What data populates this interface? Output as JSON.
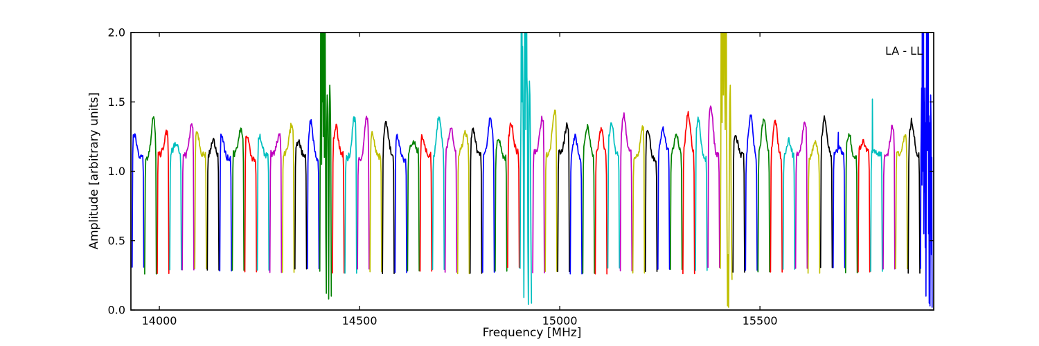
{
  "figure": {
    "background": "#ffffff",
    "annotation": "LA - LL"
  },
  "chart_data": {
    "type": "line",
    "title": "",
    "xlabel": "Frequency [MHz]",
    "ylabel": "Amplitude [arbitrary units]",
    "annotation": "LA - LL",
    "xlim": [
      13929,
      15934
    ],
    "ylim": [
      0.0,
      2.0
    ],
    "xticks": [
      14000,
      14500,
      15000,
      15500
    ],
    "xtick_labels": [
      "14000",
      "14500",
      "15000",
      "15500"
    ],
    "yticks": [
      0.0,
      0.5,
      1.0,
      1.5,
      2.0
    ],
    "ytick_labels": [
      "0.0",
      "0.5",
      "1.0",
      "1.5",
      "2.0"
    ],
    "grid": false,
    "legend_position": "none",
    "axis_color": "#000000",
    "color_cycle": [
      "#0000ff",
      "#008000",
      "#ff0000",
      "#00bfbf",
      "#bf00bf",
      "#bfbf00",
      "#000000"
    ],
    "subbands": {
      "count": 64,
      "first_freq_mhz": 13931.5,
      "width_mhz": 31.26,
      "base_amp": 1.11,
      "edge_amp": 0.26,
      "bands": [
        {
          "p": 1.27,
          "q": 0.15
        },
        {
          "p": 1.38,
          "q": 0.75
        },
        {
          "p": 1.28,
          "q": 0.8
        },
        {
          "p": 1.19,
          "q": 0.5
        },
        {
          "p": 1.33,
          "q": 0.8
        },
        {
          "p": 1.27,
          "q": 0.2
        },
        {
          "p": 1.22,
          "q": 0.5
        },
        {
          "p": 1.26,
          "q": 0.15
        },
        {
          "p": 1.3,
          "q": 0.75
        },
        {
          "p": 1.26,
          "q": 0.2
        },
        {
          "p": 1.25,
          "q": 0.2
        },
        {
          "p": 1.26,
          "q": 0.8
        },
        {
          "p": 1.34,
          "q": 0.8
        },
        {
          "p": 1.21,
          "q": 0.3
        },
        {
          "p": 1.36,
          "q": 0.3
        },
        {
          "rfi": [
            [
              0,
              0.28
            ],
            [
              0.03,
              1.05
            ],
            [
              0.06,
              1.3
            ],
            [
              0.09,
              2.6
            ],
            [
              0.13,
              2.6
            ],
            [
              0.15,
              1.05
            ],
            [
              0.17,
              2.6
            ],
            [
              0.2,
              2.6
            ],
            [
              0.23,
              1.5
            ],
            [
              0.26,
              1.68
            ],
            [
              0.29,
              1.25
            ],
            [
              0.32,
              2.6
            ],
            [
              0.36,
              2.6
            ],
            [
              0.38,
              1.1
            ],
            [
              0.4,
              2.6
            ],
            [
              0.43,
              2.6
            ],
            [
              0.46,
              1.6
            ],
            [
              0.5,
              0.55
            ],
            [
              0.54,
              0.12
            ],
            [
              0.58,
              1.3
            ],
            [
              0.62,
              1.55
            ],
            [
              0.66,
              1.45
            ],
            [
              0.7,
              1.1
            ],
            [
              0.74,
              0.08
            ],
            [
              0.79,
              1.4
            ],
            [
              0.83,
              1.62
            ],
            [
              0.87,
              1.5
            ],
            [
              0.91,
              1.25
            ],
            [
              0.96,
              0.1
            ]
          ]
        },
        {
          "p": 1.32,
          "q": 0.3
        },
        {
          "p": 1.38,
          "q": 0.8
        },
        {
          "p": 1.38,
          "q": 0.8
        },
        {
          "p": 1.28,
          "q": 0.2
        },
        {
          "p": 1.35,
          "q": 0.3
        },
        {
          "p": 1.25,
          "q": 0.2
        },
        {
          "p": 1.22,
          "q": 0.5
        },
        {
          "p": 1.25,
          "q": 0.2
        },
        {
          "p": 1.4,
          "q": 0.55
        },
        {
          "p": 1.32,
          "q": 0.5
        },
        {
          "p": 1.28,
          "q": 0.65
        },
        {
          "p": 1.3,
          "q": 0.25
        },
        {
          "p": 1.38,
          "q": 0.65
        },
        {
          "p": 1.22,
          "q": 0.3
        },
        {
          "p": 1.34,
          "q": 0.3
        },
        {
          "rfi": [
            [
              0,
              0.3
            ],
            [
              0.04,
              1.0
            ],
            [
              0.08,
              1.45
            ],
            [
              0.11,
              2.6
            ],
            [
              0.15,
              2.6
            ],
            [
              0.18,
              1.5
            ],
            [
              0.21,
              1.9
            ],
            [
              0.24,
              1.55
            ],
            [
              0.28,
              1.0
            ],
            [
              0.32,
              0.09
            ],
            [
              0.37,
              1.55
            ],
            [
              0.4,
              2.6
            ],
            [
              0.45,
              2.6
            ],
            [
              0.48,
              1.3
            ],
            [
              0.5,
              2.6
            ],
            [
              0.53,
              2.6
            ],
            [
              0.57,
              1.68
            ],
            [
              0.61,
              1.55
            ],
            [
              0.65,
              0.5
            ],
            [
              0.69,
              0.04
            ],
            [
              0.74,
              1.45
            ],
            [
              0.78,
              1.65
            ],
            [
              0.82,
              1.55
            ],
            [
              0.86,
              1.2
            ],
            [
              0.9,
              0.6
            ],
            [
              0.95,
              0.05
            ]
          ]
        },
        {
          "p": 1.38,
          "q": 0.8
        },
        {
          "p": 1.44,
          "q": 0.8
        },
        {
          "p": 1.33,
          "q": 0.8
        },
        {
          "p": 1.25,
          "q": 0.4
        },
        {
          "p": 1.32,
          "q": 0.4
        },
        {
          "p": 1.3,
          "q": 0.5
        },
        {
          "p": 1.35,
          "q": 0.3
        },
        {
          "p": 1.4,
          "q": 0.3
        },
        {
          "p": 1.32,
          "q": 0.85
        },
        {
          "p": 1.3,
          "q": 0.2
        },
        {
          "p": 1.3,
          "q": 0.45
        },
        {
          "p": 1.28,
          "q": 0.5
        },
        {
          "p": 1.42,
          "q": 0.45
        },
        {
          "p": 1.38,
          "q": 0.25
        },
        {
          "p": 1.46,
          "q": 0.25
        },
        {
          "rfi": [
            [
              0,
              0.3
            ],
            [
              0.04,
              1.1
            ],
            [
              0.08,
              2.6
            ],
            [
              0.12,
              2.6
            ],
            [
              0.15,
              1.35
            ],
            [
              0.18,
              2.6
            ],
            [
              0.22,
              2.6
            ],
            [
              0.26,
              1.55
            ],
            [
              0.3,
              2.6
            ],
            [
              0.34,
              2.6
            ],
            [
              0.37,
              1.65
            ],
            [
              0.41,
              1.3
            ],
            [
              0.45,
              2.6
            ],
            [
              0.49,
              2.6
            ],
            [
              0.52,
              1.55
            ],
            [
              0.56,
              0.6
            ],
            [
              0.6,
              0.03
            ],
            [
              0.65,
              0.4
            ],
            [
              0.69,
              0.02
            ],
            [
              0.74,
              0.9
            ],
            [
              0.78,
              1.5
            ],
            [
              0.83,
              1.62
            ],
            [
              0.88,
              1.1
            ],
            [
              0.93,
              0.5
            ],
            [
              0.97,
              0.22
            ]
          ]
        },
        {
          "p": 1.25,
          "q": 0.25
        },
        {
          "p": 1.41,
          "q": 0.45
        },
        {
          "p": 1.38,
          "q": 0.5
        },
        {
          "p": 1.36,
          "q": 0.4
        },
        {
          "p": 1.22,
          "q": 0.5
        },
        {
          "p": 1.35,
          "q": 0.8
        },
        {
          "p": 1.22,
          "q": 0.6
        },
        {
          "p": 1.38,
          "q": 0.35
        },
        {
          "p": 1.17,
          "q": 0.5,
          "spike": [
            0.45,
            1.28
          ]
        },
        {
          "p": 1.26,
          "q": 0.3
        },
        {
          "p": 1.22,
          "q": 0.4
        },
        {
          "p": 1.13,
          "q": 0.6,
          "spike": [
            0.15,
            1.52
          ]
        },
        {
          "p": 1.33,
          "q": 0.8
        },
        {
          "p": 1.26,
          "q": 0.8
        },
        {
          "p": 1.36,
          "q": 0.3
        },
        {
          "rfi": [
            [
              0,
              0.3
            ],
            [
              0.03,
              1.1
            ],
            [
              0.06,
              1.35
            ],
            [
              0.09,
              1.6
            ],
            [
              0.12,
              0.9
            ],
            [
              0.15,
              2.6
            ],
            [
              0.18,
              2.6
            ],
            [
              0.21,
              1.0
            ],
            [
              0.24,
              2.6
            ],
            [
              0.27,
              0.55
            ],
            [
              0.3,
              1.5
            ],
            [
              0.33,
              0.85
            ],
            [
              0.36,
              1.6
            ],
            [
              0.39,
              0.45
            ],
            [
              0.42,
              1.35
            ],
            [
              0.45,
              0.1
            ],
            [
              0.48,
              1.45
            ],
            [
              0.51,
              2.6
            ],
            [
              0.54,
              2.6
            ],
            [
              0.57,
              1.15
            ],
            [
              0.6,
              2.6
            ],
            [
              0.63,
              2.6
            ],
            [
              0.66,
              0.55
            ],
            [
              0.69,
              1.4
            ],
            [
              0.72,
              0.05
            ],
            [
              0.75,
              1.35
            ],
            [
              0.78,
              0.03
            ],
            [
              0.81,
              1.0
            ],
            [
              0.84,
              1.55
            ],
            [
              0.87,
              1.35
            ],
            [
              0.9,
              0.4
            ],
            [
              0.93,
              1.1
            ],
            [
              0.96,
              0.02
            ]
          ]
        }
      ]
    }
  }
}
